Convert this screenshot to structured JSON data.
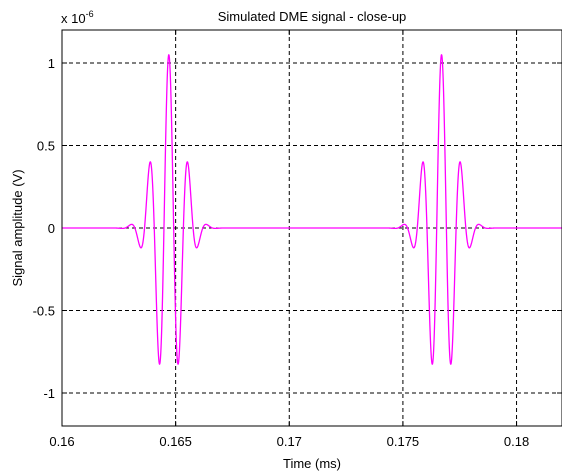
{
  "chart_data": {
    "type": "line",
    "title": "Simulated DME signal - close-up",
    "xlabel": "Time (ms)",
    "ylabel": "Signal amplitude (V)",
    "y_exponent_label": "x 10",
    "y_exponent_power": "-6",
    "xlim": [
      0.16,
      0.182
    ],
    "ylim": [
      -1.2,
      1.2
    ],
    "grid": true,
    "x_ticks": [
      {
        "value": 0.16,
        "label": "0.16"
      },
      {
        "value": 0.165,
        "label": "0.165"
      },
      {
        "value": 0.17,
        "label": "0.17"
      },
      {
        "value": 0.175,
        "label": "0.175"
      },
      {
        "value": 0.18,
        "label": "0.18"
      }
    ],
    "y_ticks": [
      {
        "value": -1,
        "label": "-1"
      },
      {
        "value": -0.5,
        "label": "-0.5"
      },
      {
        "value": 0,
        "label": "0"
      },
      {
        "value": 0.5,
        "label": "0.5"
      },
      {
        "value": 1,
        "label": "1"
      }
    ],
    "series": [
      {
        "color": "#ff00ff",
        "pulses": [
          {
            "center_ms": 0.1647,
            "amplitude": 1.05,
            "width_ms": 0.00085,
            "carrier_freq_per_ms": 1170
          },
          {
            "center_ms": 0.1767,
            "amplitude": 1.05,
            "width_ms": 0.00085,
            "carrier_freq_per_ms": 1170
          }
        ]
      }
    ]
  }
}
